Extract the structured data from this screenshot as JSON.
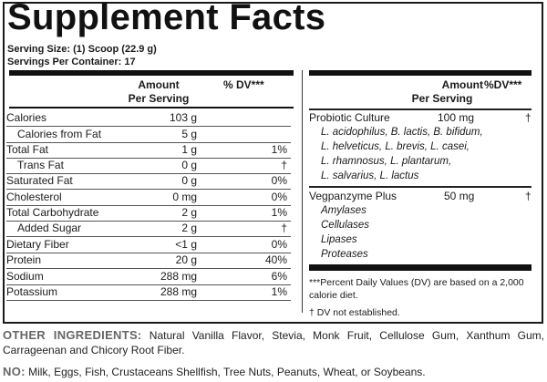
{
  "label": {
    "title": "Supplement Facts",
    "serving_size": "Serving Size: (1) Scoop (22.9 g)",
    "servings_per_container": "Servings Per Container: 17"
  },
  "left_panel": {
    "header": {
      "amount": "Amount",
      "per_serving": "Per Serving",
      "dv": "% DV***"
    },
    "rows": [
      {
        "name": "Calories",
        "amount": "103 g",
        "dv": "",
        "indent": false
      },
      {
        "name": "Calories from Fat",
        "amount": "5 g",
        "dv": "",
        "indent": true
      },
      {
        "name": "Total Fat",
        "amount": "1 g",
        "dv": "1%",
        "indent": false
      },
      {
        "name": "Trans Fat",
        "amount": "0 g",
        "dv": "†",
        "indent": true
      },
      {
        "name": "Saturated Fat",
        "amount": "0 g",
        "dv": "0%",
        "indent": false
      },
      {
        "name": "Cholesterol",
        "amount": "0 mg",
        "dv": "0%",
        "indent": false
      },
      {
        "name": "Total Carbohydrate",
        "amount": "2 g",
        "dv": "1%",
        "indent": false
      },
      {
        "name": "Added Sugar",
        "amount": "2 g",
        "dv": "†",
        "indent": true
      },
      {
        "name": "Dietary Fiber",
        "amount": "<1 g",
        "dv": "0%",
        "indent": false
      },
      {
        "name": "Protein",
        "amount": "20 g",
        "dv": "40%",
        "indent": false
      },
      {
        "name": "Sodium",
        "amount": "288 mg",
        "dv": "6%",
        "indent": false
      },
      {
        "name": "Potassium",
        "amount": "288 mg",
        "dv": "1%",
        "indent": false
      }
    ]
  },
  "right_panel": {
    "header": {
      "amount": "Amount",
      "per_serving": "Per Serving",
      "dv": "%DV***"
    },
    "blends": [
      {
        "name": "Probiotic Culture",
        "amount": "100 mg",
        "dv": "†",
        "components": [
          "L. acidophilus, B. lactis, B. bifidum,",
          "L. helveticus, L. brevis, L. casei,",
          "L. rhamnosus, L. plantarum,",
          "L. salvarius, L. lactus"
        ]
      },
      {
        "name": "Vegpanzyme Plus",
        "amount": "50 mg",
        "dv": "†",
        "components": [
          "Amylases",
          "Cellulases",
          "Lipases",
          "Proteases"
        ]
      }
    ],
    "footnotes": {
      "dv_line1": "***Percent Daily Values (DV) are based on a 2,000",
      "dv_line2": "calorie diet.",
      "dagger": "† DV not established."
    }
  },
  "other_ingredients": {
    "label": "OTHER INGREDIENTS:",
    "text": "Natural Vanilla Flavor, Stevia, Monk Fruit, Cellulose Gum, Xanthum Gum, Carrageenan and Chicory Root Fiber."
  },
  "allergens": {
    "label": "NO:",
    "text": "Milk, Eggs, Fish, Crustaceans Shellfish, Tree Nuts, Peanuts, Wheat, or Soybeans."
  }
}
